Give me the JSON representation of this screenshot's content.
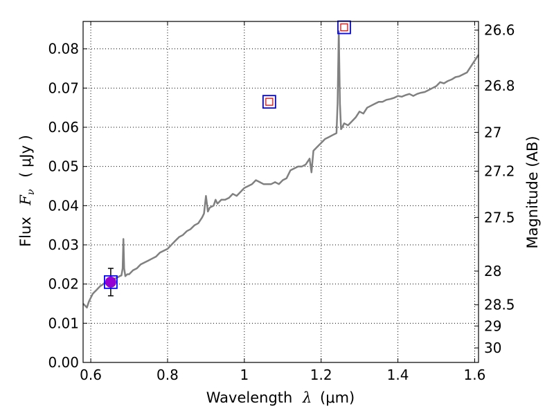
{
  "chart_data": {
    "type": "line",
    "xlabel": "Wavelength",
    "xlabel_symbol": "λ",
    "xlabel_unit": "(μm)",
    "ylabel": "Flux",
    "ylabel_symbol": "F",
    "ylabel_subscript": "ν",
    "ylabel_unit": "( μJy )",
    "y2label": "Magnitude (AB)",
    "xlim": [
      0.58,
      1.61
    ],
    "ylim": [
      0.0,
      0.087
    ],
    "grid": true,
    "x_ticks": [
      {
        "value": 0.6,
        "label": "0.6"
      },
      {
        "value": 0.8,
        "label": "0.8"
      },
      {
        "value": 1.0,
        "label": "1"
      },
      {
        "value": 1.2,
        "label": "1.2"
      },
      {
        "value": 1.4,
        "label": "1.4"
      },
      {
        "value": 1.6,
        "label": "1.6"
      }
    ],
    "y_ticks": [
      {
        "value": 0.0,
        "label": "0.00"
      },
      {
        "value": 0.01,
        "label": "0.01"
      },
      {
        "value": 0.02,
        "label": "0.02"
      },
      {
        "value": 0.03,
        "label": "0.03"
      },
      {
        "value": 0.04,
        "label": "0.04"
      },
      {
        "value": 0.05,
        "label": "0.05"
      },
      {
        "value": 0.06,
        "label": "0.06"
      },
      {
        "value": 0.07,
        "label": "0.07"
      },
      {
        "value": 0.08,
        "label": "0.08"
      }
    ],
    "y2_ticks": [
      {
        "label": "26.6",
        "flux": 0.0848
      },
      {
        "label": "26.8",
        "flux": 0.0706
      },
      {
        "label": "27",
        "flux": 0.0587
      },
      {
        "label": "27.2",
        "flux": 0.0488
      },
      {
        "label": "27.5",
        "flux": 0.037
      },
      {
        "label": "28",
        "flux": 0.0233
      },
      {
        "label": "28.5",
        "flux": 0.0147
      },
      {
        "label": "29",
        "flux": 0.0093
      },
      {
        "label": "30",
        "flux": 0.0037
      }
    ],
    "series": [
      {
        "type": "line",
        "color": "#808080",
        "x": [
          0.58,
          0.585,
          0.59,
          0.595,
          0.6,
          0.605,
          0.61,
          0.615,
          0.62,
          0.625,
          0.63,
          0.635,
          0.64,
          0.645,
          0.65,
          0.655,
          0.66,
          0.665,
          0.67,
          0.675,
          0.68,
          0.683,
          0.685,
          0.687,
          0.69,
          0.695,
          0.7,
          0.71,
          0.72,
          0.73,
          0.74,
          0.75,
          0.76,
          0.77,
          0.78,
          0.79,
          0.8,
          0.81,
          0.82,
          0.83,
          0.84,
          0.85,
          0.86,
          0.87,
          0.88,
          0.89,
          0.895,
          0.9,
          0.905,
          0.91,
          0.92,
          0.925,
          0.93,
          0.94,
          0.95,
          0.96,
          0.97,
          0.98,
          0.99,
          1.0,
          1.01,
          1.02,
          1.03,
          1.04,
          1.05,
          1.06,
          1.07,
          1.08,
          1.09,
          1.1,
          1.11,
          1.12,
          1.13,
          1.14,
          1.15,
          1.16,
          1.17,
          1.175,
          1.18,
          1.19,
          1.2,
          1.21,
          1.22,
          1.23,
          1.24,
          1.243,
          1.246,
          1.249,
          1.252,
          1.255,
          1.26,
          1.27,
          1.28,
          1.29,
          1.3,
          1.31,
          1.32,
          1.33,
          1.34,
          1.35,
          1.36,
          1.37,
          1.38,
          1.39,
          1.4,
          1.41,
          1.42,
          1.43,
          1.44,
          1.45,
          1.46,
          1.47,
          1.48,
          1.49,
          1.5,
          1.51,
          1.52,
          1.53,
          1.54,
          1.55,
          1.56,
          1.57,
          1.58,
          1.59,
          1.6,
          1.61
        ],
        "y": [
          0.015,
          0.0145,
          0.014,
          0.0155,
          0.0165,
          0.0175,
          0.018,
          0.0185,
          0.019,
          0.0195,
          0.0198,
          0.0202,
          0.0205,
          0.0208,
          0.021,
          0.0212,
          0.0213,
          0.0215,
          0.0217,
          0.022,
          0.0222,
          0.024,
          0.0315,
          0.024,
          0.022,
          0.0225,
          0.0225,
          0.0235,
          0.024,
          0.025,
          0.0255,
          0.026,
          0.0265,
          0.027,
          0.028,
          0.0285,
          0.029,
          0.03,
          0.031,
          0.032,
          0.0325,
          0.0335,
          0.034,
          0.035,
          0.0355,
          0.037,
          0.038,
          0.0425,
          0.0385,
          0.0395,
          0.04,
          0.0415,
          0.0405,
          0.0415,
          0.0415,
          0.042,
          0.043,
          0.0425,
          0.0435,
          0.0445,
          0.045,
          0.0455,
          0.0465,
          0.046,
          0.0455,
          0.0455,
          0.0455,
          0.046,
          0.0455,
          0.0465,
          0.047,
          0.049,
          0.0495,
          0.05,
          0.05,
          0.0505,
          0.052,
          0.0485,
          0.054,
          0.055,
          0.056,
          0.057,
          0.0575,
          0.058,
          0.0585,
          0.066,
          0.0845,
          0.066,
          0.0595,
          0.06,
          0.061,
          0.0605,
          0.0615,
          0.0625,
          0.064,
          0.0635,
          0.065,
          0.0655,
          0.066,
          0.0665,
          0.0665,
          0.067,
          0.0672,
          0.0675,
          0.068,
          0.0678,
          0.0682,
          0.0685,
          0.068,
          0.0685,
          0.0688,
          0.069,
          0.0695,
          0.07,
          0.0705,
          0.0715,
          0.0712,
          0.0718,
          0.0722,
          0.0728,
          0.073,
          0.0735,
          0.074,
          0.0755,
          0.077,
          0.0785
        ]
      }
    ],
    "photometry": [
      {
        "name": "filled-point",
        "x": 0.652,
        "y": 0.0205,
        "yerr": 0.0035,
        "marker": "circle",
        "color": "#9400d3",
        "box_color": "#0000ff"
      },
      {
        "name": "box-1.06",
        "x": 1.065,
        "y": 0.0665,
        "marker": "square",
        "box_color": "#0000ff",
        "inner_color": "#ff0000"
      },
      {
        "name": "box-1.26",
        "x": 1.26,
        "y": 0.0855,
        "marker": "square",
        "box_color": "#0000ff",
        "inner_color": "#ff0000"
      }
    ]
  }
}
